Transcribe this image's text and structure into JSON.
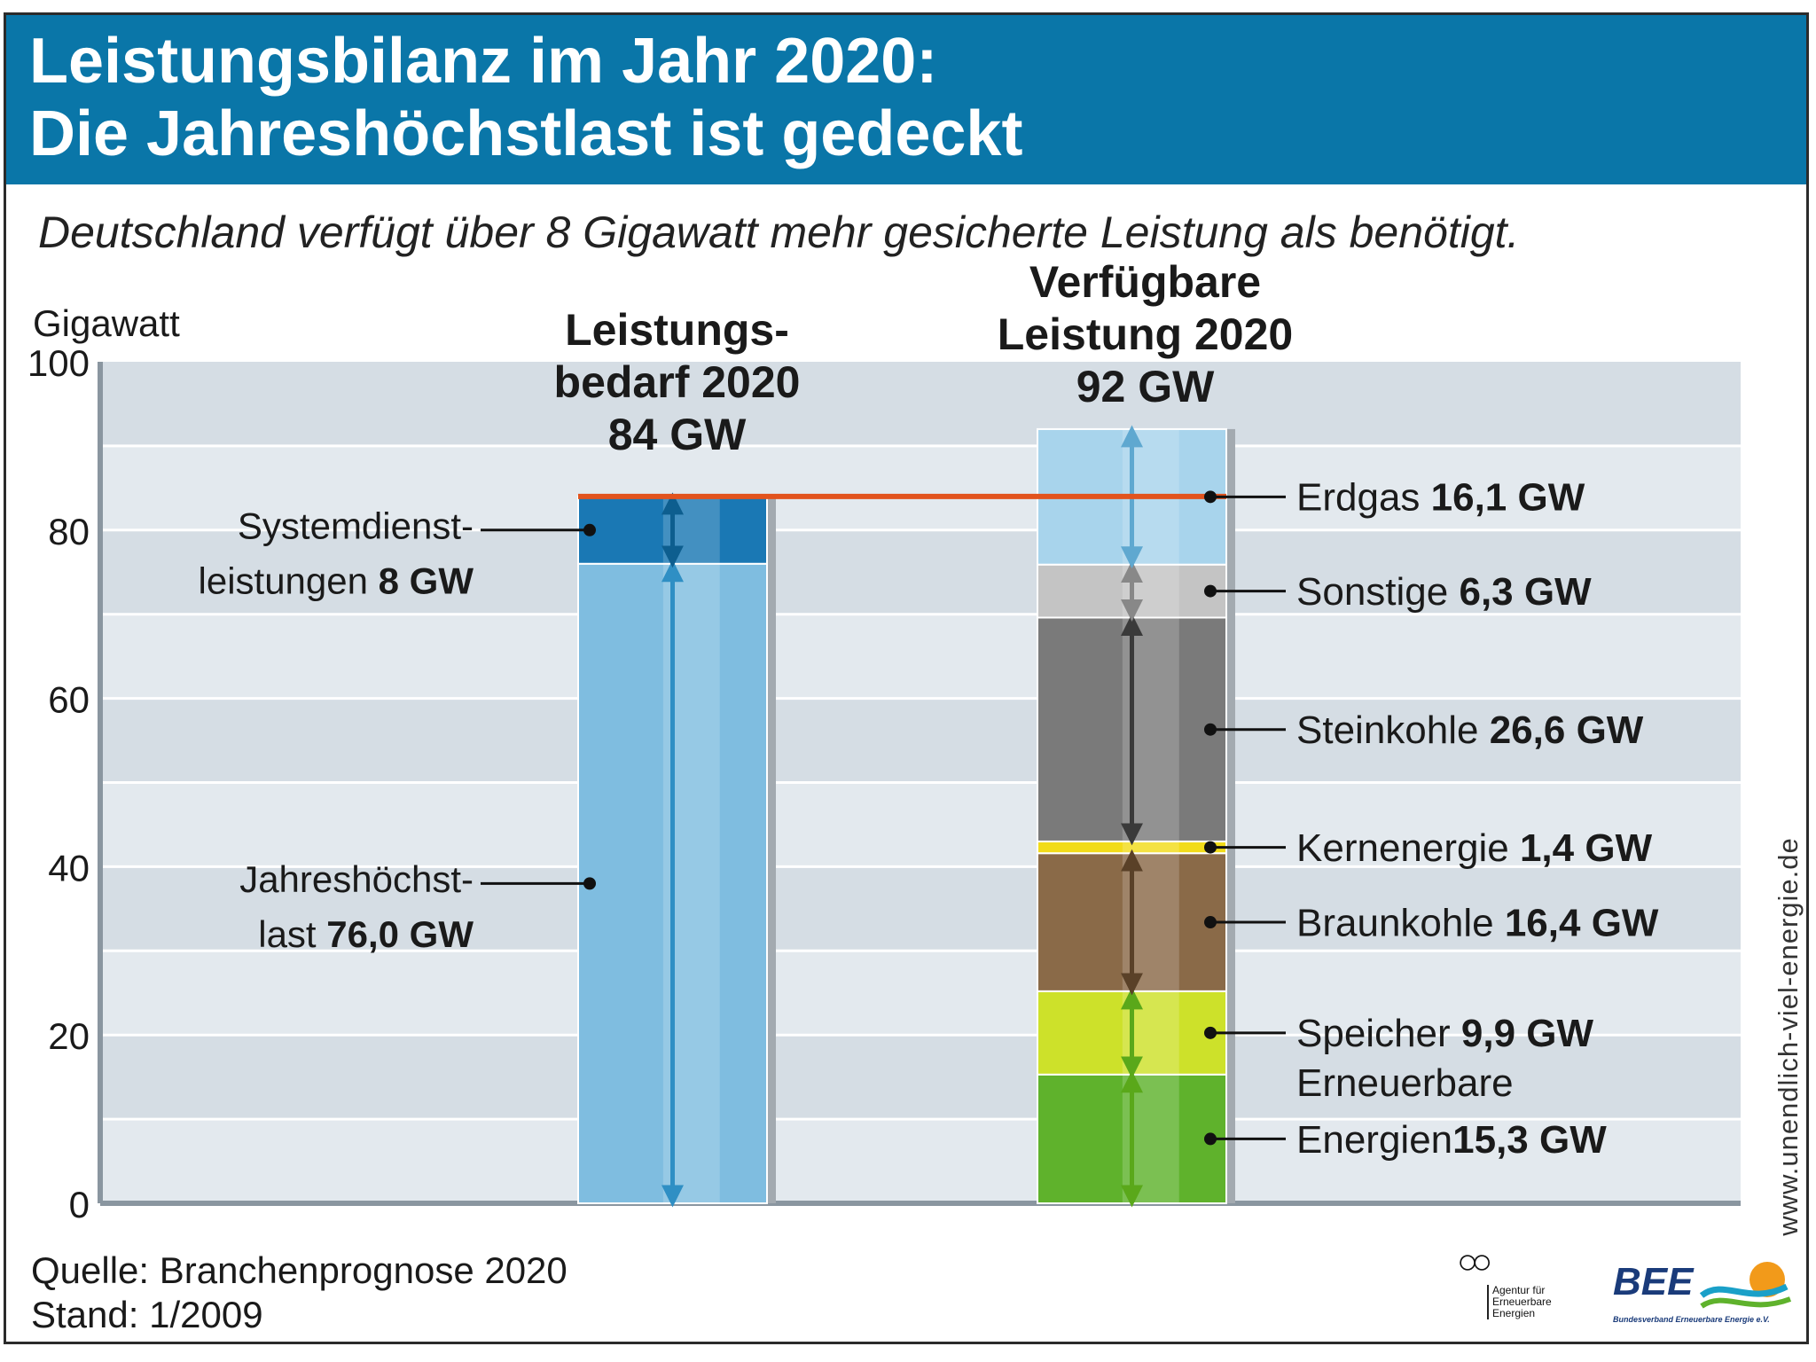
{
  "header": {
    "title_line1": "Leistungsbilanz im Jahr 2020:",
    "title_line2": "Die Jahreshöchstlast ist gedeckt",
    "subtitle": "Deutschland verfügt über 8 Gigawatt mehr gesicherte Leistung als benötigt."
  },
  "chart_data": {
    "type": "bar",
    "stacked": true,
    "ylabel": "Gigawatt",
    "ylim": [
      0,
      100
    ],
    "yticks": [
      0,
      20,
      40,
      60,
      80,
      100
    ],
    "reference_line": 84,
    "bars": [
      {
        "title_lines": [
          "Leistungs-",
          "bedarf 2020",
          "84 GW"
        ],
        "total": 84,
        "segments": [
          {
            "name": "Jahreshöchstlast",
            "value": 76.0,
            "color": "#7fbde0",
            "label_lines": [
              [
                "Jahreshöchst-",
                ""
              ],
              [
                "last ",
                "76,0 GW"
              ]
            ]
          },
          {
            "name": "Systemdienstleistungen",
            "value": 8,
            "color": "#1a78b4",
            "label_lines": [
              [
                "Systemdienst-",
                ""
              ],
              [
                "leistungen ",
                "8 GW"
              ]
            ]
          }
        ]
      },
      {
        "title_lines": [
          "Verfügbare",
          "Leistung 2020",
          "92 GW"
        ],
        "total": 92,
        "segments": [
          {
            "name": "Erneuerbare Energien",
            "value": 15.3,
            "color": "#5fb22c",
            "label_lines": [
              [
                "Erneuerbare",
                ""
              ],
              [
                "Energien",
                ""
              ],
              [
                "",
                "15,3 GW"
              ]
            ]
          },
          {
            "name": "Speicher",
            "value": 9.9,
            "color": "#cde12a",
            "label_lines": [
              [
                "Speicher ",
                "9,9 GW"
              ]
            ]
          },
          {
            "name": "Braunkohle",
            "value": 16.4,
            "color": "#8a6a48",
            "label_lines": [
              [
                "Braunkohle ",
                "16,4 GW"
              ]
            ]
          },
          {
            "name": "Kernenergie",
            "value": 1.4,
            "color": "#f2dc1a",
            "label_lines": [
              [
                "Kernenergie ",
                "1,4 GW"
              ]
            ]
          },
          {
            "name": "Steinkohle",
            "value": 26.6,
            "color": "#7a7a7a",
            "label_lines": [
              [
                "Steinkohle ",
                "26,6 GW"
              ]
            ]
          },
          {
            "name": "Sonstige",
            "value": 6.3,
            "color": "#c4c4c4",
            "label_lines": [
              [
                "Sonstige ",
                "6,3 GW"
              ]
            ]
          },
          {
            "name": "Erdgas",
            "value": 16.1,
            "color": "#a8d4ec",
            "label_lines": [
              [
                "Erdgas ",
                "16,1 GW"
              ]
            ]
          }
        ]
      }
    ]
  },
  "footer": {
    "source": "Quelle: Branchenprognose 2020",
    "date": "Stand: 1/2009",
    "website": "www.unendlich-viel-energie.de",
    "logo_aee_text": "Agentur für Erneuerbare Energien",
    "logo_bee_name": "BEE",
    "logo_bee_sub": "Bundesverband Erneuerbare Energie e.V."
  }
}
